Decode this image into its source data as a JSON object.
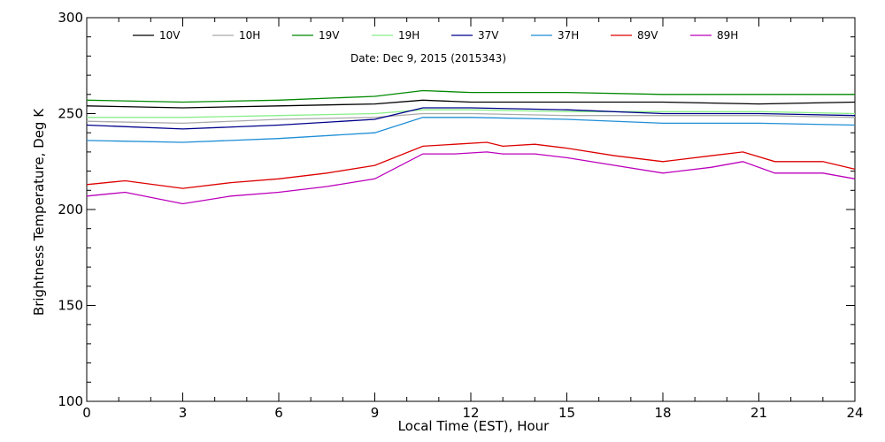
{
  "chart_data": {
    "type": "line",
    "title": "",
    "annotation": "Date: Dec  9, 2015 (2015343)",
    "xlabel": "Local Time (EST), Hour",
    "ylabel": "Brightness Temperature, Deg K",
    "xlim": [
      0,
      24
    ],
    "ylim": [
      100,
      300
    ],
    "x_ticks": [
      "0",
      "3",
      "6",
      "9",
      "12",
      "15",
      "18",
      "21",
      "24"
    ],
    "y_ticks": [
      "100",
      "150",
      "200",
      "250",
      "300"
    ],
    "grid": false,
    "legend_position": "top",
    "series": [
      {
        "name": "10V",
        "color": "#000000",
        "x": [
          0,
          3,
          6,
          9,
          10.5,
          12,
          15,
          18,
          21,
          24
        ],
        "y": [
          254,
          253,
          254,
          255,
          257,
          256,
          256,
          256,
          255,
          256
        ]
      },
      {
        "name": "10H",
        "color": "#aaaaaa",
        "x": [
          0,
          3,
          6,
          9,
          10.5,
          12,
          15,
          18,
          21,
          24
        ],
        "y": [
          246,
          245,
          247,
          248,
          250,
          250,
          249,
          249,
          249,
          248
        ]
      },
      {
        "name": "19V",
        "color": "#008800",
        "x": [
          0,
          3,
          6,
          9,
          10.5,
          12,
          15,
          18,
          21,
          24
        ],
        "y": [
          257,
          256,
          257,
          259,
          262,
          261,
          261,
          260,
          260,
          260
        ]
      },
      {
        "name": "19H",
        "color": "#88ee88",
        "x": [
          0,
          3,
          6,
          9,
          10.5,
          12,
          15,
          18,
          21,
          24
        ],
        "y": [
          248,
          248,
          249,
          250,
          252,
          252,
          251,
          251,
          251,
          250
        ]
      },
      {
        "name": "37V",
        "color": "#00008b",
        "x": [
          0,
          3,
          6,
          9,
          10.5,
          12,
          15,
          18,
          21,
          24
        ],
        "y": [
          244,
          242,
          244,
          247,
          253,
          253,
          252,
          250,
          250,
          249
        ]
      },
      {
        "name": "37H",
        "color": "#1e8ed6",
        "x": [
          0,
          3,
          6,
          9,
          10.5,
          12,
          15,
          18,
          21,
          24
        ],
        "y": [
          236,
          235,
          237,
          240,
          248,
          248,
          247,
          245,
          245,
          244
        ]
      },
      {
        "name": "89V",
        "color": "#dd0000",
        "x": [
          0,
          1.2,
          3,
          4.5,
          6,
          7.5,
          9,
          10.5,
          11.5,
          12.5,
          13,
          14,
          15,
          16.5,
          18,
          19.5,
          20.5,
          21.5,
          23,
          24
        ],
        "y": [
          213,
          215,
          211,
          214,
          216,
          219,
          223,
          233,
          234,
          235,
          233,
          234,
          232,
          228,
          225,
          228,
          230,
          225,
          225,
          221
        ]
      },
      {
        "name": "89H",
        "color": "#bb00bb",
        "x": [
          0,
          1.2,
          3,
          4.5,
          6,
          7.5,
          9,
          10.5,
          11.5,
          12.5,
          13,
          14,
          15,
          16.5,
          18,
          19.5,
          20.5,
          21.5,
          23,
          24
        ],
        "y": [
          207,
          209,
          203,
          207,
          209,
          212,
          216,
          229,
          229,
          230,
          229,
          229,
          227,
          223,
          219,
          222,
          225,
          219,
          219,
          216
        ]
      }
    ]
  }
}
